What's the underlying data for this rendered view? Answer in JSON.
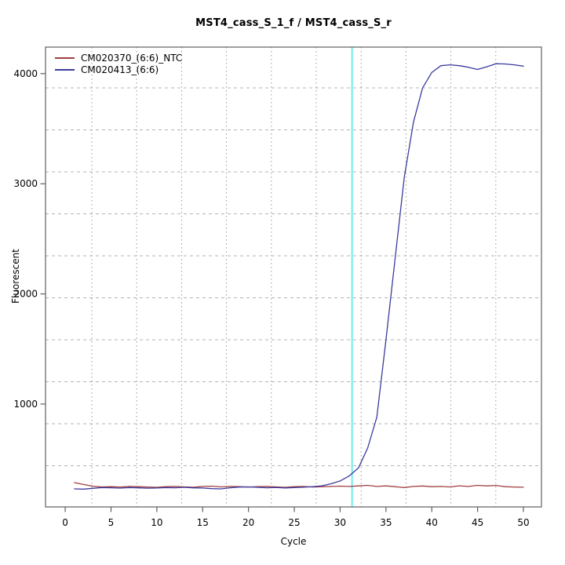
{
  "title": "MST4_cass_S_1_f / MST4_cass_S_r",
  "colors": {
    "background": "#ffffff",
    "axis": "#5f5f5f",
    "grid_horizontal": "#b3b3b3",
    "grid_vertical": "#9a9a9a",
    "threshold": "#5fe9e9",
    "series_ntc": "#a04040",
    "series_sample": "#3b3b9e"
  },
  "chart_data": {
    "type": "line",
    "title": "MST4_cass_S_1_f / MST4_cass_S_r",
    "xlabel": "Cycle",
    "ylabel": "Fluorescent",
    "xlim": [
      -2.15,
      51.97
    ],
    "ylim": [
      66,
      4241
    ],
    "x_ticks": [
      0,
      5,
      10,
      15,
      20,
      25,
      30,
      35,
      40,
      45,
      50
    ],
    "y_ticks": [
      1000,
      2000,
      3000,
      4000
    ],
    "grid": {
      "show": true,
      "horizontal_style": "dashed",
      "vertical_style": "dotted"
    },
    "legend_position": "top-left",
    "threshold_line": {
      "cycle": 31.3,
      "color": "#5fe9e9",
      "orientation": "vertical"
    },
    "x": [
      1,
      2,
      3,
      4,
      5,
      6,
      7,
      8,
      9,
      10,
      11,
      12,
      13,
      14,
      15,
      16,
      17,
      18,
      19,
      20,
      21,
      22,
      23,
      24,
      25,
      26,
      27,
      28,
      29,
      30,
      31,
      32,
      33,
      34,
      35,
      36,
      37,
      38,
      39,
      40,
      41,
      42,
      43,
      44,
      45,
      46,
      47,
      48,
      49,
      50
    ],
    "series": [
      {
        "name": "CM020370_(6:6)_NTC",
        "color": "#a04040",
        "values": [
          287,
          270,
          255,
          248,
          250,
          247,
          252,
          250,
          247,
          244,
          250,
          252,
          248,
          245,
          252,
          255,
          248,
          252,
          250,
          247,
          250,
          252,
          248,
          244,
          250,
          252,
          247,
          250,
          252,
          255,
          252,
          257,
          262,
          252,
          257,
          250,
          242,
          252,
          256,
          250,
          252,
          248,
          258,
          252,
          262,
          257,
          261,
          250,
          247,
          245
        ]
      },
      {
        "name": "CM020413_(6:6)",
        "color": "#3b3b9e",
        "values": [
          230,
          228,
          235,
          242,
          240,
          237,
          242,
          239,
          236,
          238,
          242,
          240,
          244,
          239,
          238,
          232,
          230,
          240,
          246,
          248,
          244,
          240,
          243,
          238,
          242,
          245,
          250,
          258,
          276,
          302,
          348,
          420,
          600,
          880,
          1580,
          2320,
          3060,
          3560,
          3870,
          4010,
          4072,
          4080,
          4072,
          4058,
          4038,
          4062,
          4090,
          4088,
          4080,
          4068
        ]
      }
    ]
  }
}
